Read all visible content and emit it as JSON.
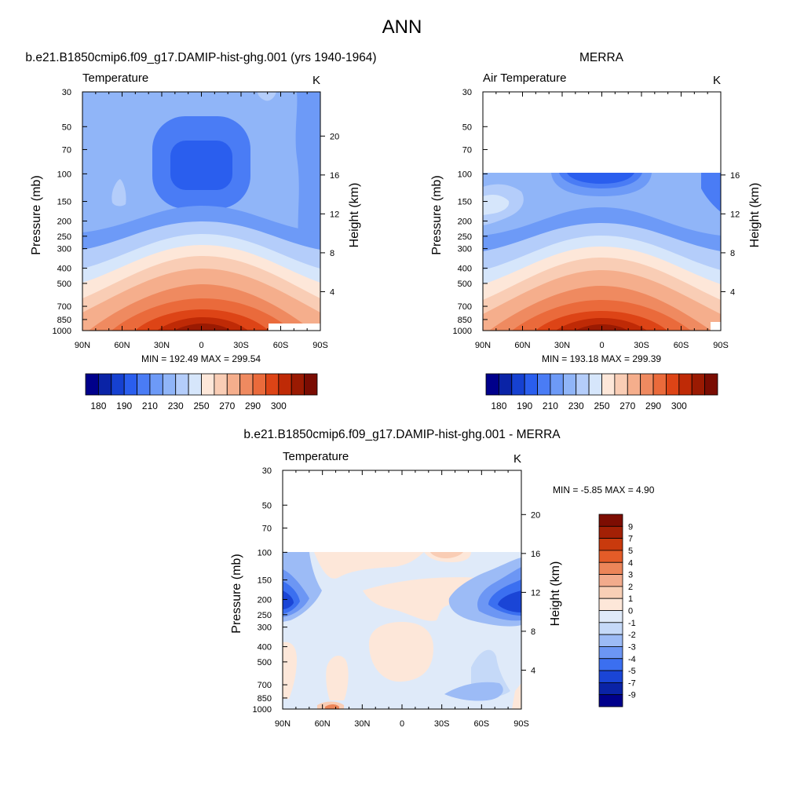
{
  "page": {
    "title": "ANN"
  },
  "colors": {
    "temperature_levels": [
      "#00008b",
      "#0a23a6",
      "#1641d1",
      "#2a5eee",
      "#4a7cf5",
      "#6d9af7",
      "#90b5f8",
      "#b4cdfa",
      "#d6e6fb",
      "#fde7d9",
      "#f9cdb5",
      "#f5ae8c",
      "#ef8a60",
      "#ea6a3b",
      "#dd4416",
      "#bf2a06",
      "#9a1a02",
      "#7a0c02"
    ],
    "difference_levels": [
      "#00008b",
      "#0a23a6",
      "#1a45d6",
      "#3b6ff0",
      "#6c96f4",
      "#9cbbf6",
      "#c5d9f8",
      "#dfeaf9",
      "#fde7d9",
      "#f8cfb6",
      "#f2ab8c",
      "#ec8559",
      "#e45c28",
      "#c93a0d",
      "#a32005",
      "#7d0d02"
    ]
  },
  "chart_data": [
    {
      "type": "heatmap",
      "title": "b.e21.B1850cmip6.f09_g17.DAMIP-hist-ghg.001 (yrs 1940-1964)",
      "left_label": "Temperature",
      "units": "K",
      "ylabel": "Pressure (mb)",
      "y2label": "Height (km)",
      "x_ticks": [
        "90N",
        "60N",
        "30N",
        "0",
        "30S",
        "60S",
        "90S"
      ],
      "y_ticks": [
        "30",
        "50",
        "70",
        "100",
        "150",
        "200",
        "250",
        "300",
        "400",
        "500",
        "700",
        "850",
        "1000"
      ],
      "y2_ticks": [
        "20",
        "16",
        "12",
        "8",
        "4"
      ],
      "stats": "MIN = 192.49  MAX = 299.54",
      "min": 192.49,
      "max": 299.54,
      "colorbar_labels": [
        "180",
        "190",
        "210",
        "230",
        "250",
        "270",
        "290",
        "300"
      ],
      "colorbar_levels": [
        180,
        185,
        190,
        200,
        210,
        220,
        230,
        240,
        250,
        260,
        270,
        280,
        290,
        295,
        300
      ]
    },
    {
      "type": "heatmap",
      "title": "MERRA",
      "left_label": "Air Temperature",
      "units": "K",
      "ylabel": "Pressure (mb)",
      "y2label": "Height (km)",
      "x_ticks": [
        "90N",
        "60N",
        "30N",
        "0",
        "30S",
        "60S",
        "90S"
      ],
      "y_ticks": [
        "30",
        "50",
        "70",
        "100",
        "150",
        "200",
        "250",
        "300",
        "400",
        "500",
        "700",
        "850",
        "1000"
      ],
      "y2_ticks": [
        "16",
        "12",
        "8",
        "4"
      ],
      "stats": "MIN = 193.18  MAX = 299.39",
      "min": 193.18,
      "max": 299.39,
      "colorbar_labels": [
        "180",
        "190",
        "210",
        "230",
        "250",
        "270",
        "290",
        "300"
      ],
      "colorbar_levels": [
        180,
        185,
        190,
        200,
        210,
        220,
        230,
        240,
        250,
        260,
        270,
        280,
        290,
        295,
        300
      ]
    },
    {
      "type": "heatmap",
      "title": "b.e21.B1850cmip6.f09_g17.DAMIP-hist-ghg.001 - MERRA",
      "left_label": "Temperature",
      "units": "K",
      "ylabel": "Pressure (mb)",
      "y2label": "Height (km)",
      "x_ticks": [
        "90N",
        "60N",
        "30N",
        "0",
        "30S",
        "60S",
        "90S"
      ],
      "y_ticks": [
        "30",
        "50",
        "70",
        "100",
        "150",
        "200",
        "250",
        "300",
        "400",
        "500",
        "700",
        "850",
        "1000"
      ],
      "y2_ticks": [
        "20",
        "16",
        "12",
        "8",
        "4"
      ],
      "stats": "MIN =  -5.85  MAX =   4.90",
      "min": -5.85,
      "max": 4.9,
      "colorbar_labels": [
        "9",
        "7",
        "5",
        "4",
        "3",
        "2",
        "1",
        "0",
        "-1",
        "-2",
        "-3",
        "-4",
        "-5",
        "-7",
        "-9"
      ],
      "colorbar_levels": [
        -9,
        -7,
        -5,
        -4,
        -3,
        -2,
        -1,
        0,
        1,
        2,
        3,
        4,
        5,
        7,
        9
      ]
    }
  ]
}
